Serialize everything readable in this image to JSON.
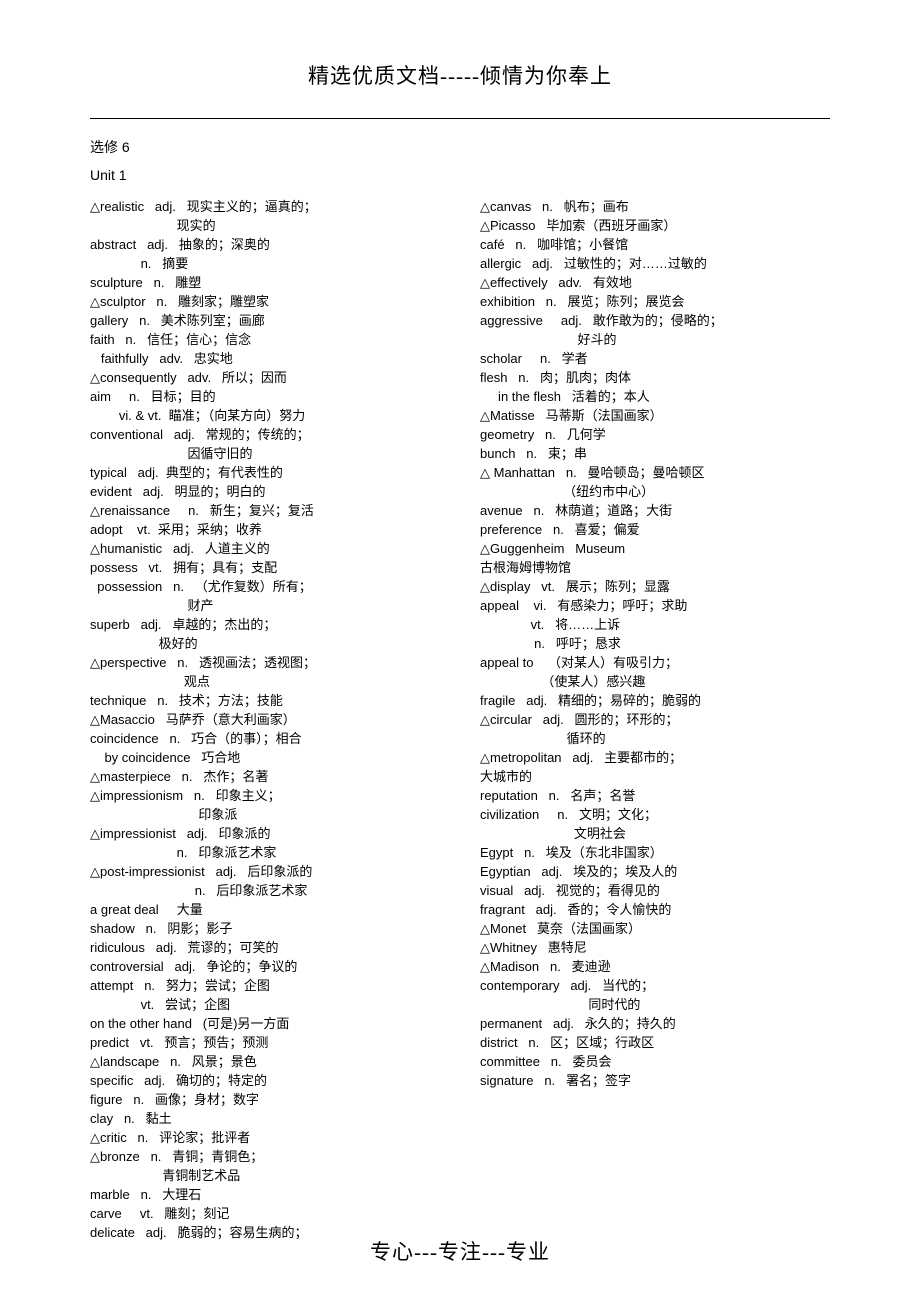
{
  "header": "精选优质文档-----倾情为你奉上",
  "footer": "专心---专注---专业",
  "section": "选修 6",
  "unit": "Unit 1",
  "left": [
    "△realistic   adj.   现实主义的；逼真的；",
    "                        现实的",
    "abstract   adj.   抽象的；深奥的",
    "              n.   摘要",
    "sculpture   n.   雕塑",
    "△sculptor   n.   雕刻家；雕塑家",
    "gallery   n.   美术陈列室；画廊",
    "faith   n.   信任；信心；信念",
    "   faithfully   adv.   忠实地",
    "△consequently   adv.   所以；因而",
    "aim     n.   目标；目的",
    "        vi. & vt.  瞄准；（向某方向）努力",
    "conventional   adj.   常规的；传统的；",
    "                           因循守旧的",
    "typical   adj.  典型的；有代表性的",
    "evident   adj.   明显的；明白的",
    "△renaissance     n.   新生；复兴；复活",
    "adopt    vt.  采用；采纳；收养",
    "△humanistic   adj.   人道主义的",
    "possess   vt.   拥有；具有；支配",
    "  possession   n.   （尤作复数）所有；",
    "                           财产",
    "superb   adj.   卓越的；杰出的；",
    "                   极好的",
    "△perspective   n.   透视画法；透视图；",
    "                          观点",
    "technique   n.   技术；方法；技能",
    "△Masaccio   马萨乔（意大利画家）",
    "coincidence   n.   巧合（的事）；相合",
    "    by coincidence   巧合地",
    "△masterpiece   n.   杰作；名著",
    "△impressionism   n.   印象主义；",
    "                              印象派",
    "△impressionist   adj.   印象派的",
    "                        n.   印象派艺术家",
    "△post-impressionist   adj.   后印象派的",
    "                             n.   后印象派艺术家",
    "a great deal     大量",
    "shadow   n.   阴影；影子",
    "ridiculous   adj.   荒谬的；可笑的",
    "controversial   adj.   争论的；争议的",
    "attempt   n.   努力；尝试；企图",
    "              vt.   尝试；企图",
    "on the other hand   (可是)另一方面",
    "predict   vt.   预言；预告；预测",
    "△landscape   n.   风景；景色",
    "specific   adj.   确切的；特定的",
    "figure   n.   画像；身材；数字",
    "clay   n.   黏土",
    "△critic   n.   评论家；批评者",
    "△bronze   n.   青铜；青铜色；",
    "                    青铜制艺术品",
    "marble   n.   大理石",
    "carve     vt.   雕刻；刻记",
    "delicate   adj.   脆弱的；容易生病的；"
  ],
  "right": [
    "△canvas   n.   帆布；画布",
    "△Picasso   毕加索（西班牙画家）",
    "café   n.   咖啡馆；小餐馆",
    "allergic   adj.   过敏性的；对……过敏的",
    "△effectively   adv.   有效地",
    "exhibition   n.   展览；陈列；展览会",
    "aggressive     adj.   敢作敢为的；侵略的；",
    "                           好斗的",
    "scholar     n.   学者",
    "flesh   n.   肉；肌肉；肉体",
    "     in the flesh   活着的；本人",
    "△Matisse   马蒂斯（法国画家）",
    "geometry   n.   几何学",
    "bunch   n.   束；串",
    "△ Manhattan   n.   曼哈顿岛；曼哈顿区",
    "                       （纽约市中心）",
    "avenue   n.   林荫道；道路；大街",
    "preference   n.   喜爱；偏爱",
    "△Guggenheim   Museum",
    "古根海姆博物馆",
    "△display   vt.   展示；陈列；显露",
    "appeal    vi.   有感染力；呼吁；求助",
    "              vt.   将……上诉",
    "               n.   呼吁；恳求",
    "appeal to    （对某人）有吸引力；",
    "                 （使某人）感兴趣",
    "fragile   adj.   精细的；易碎的；脆弱的",
    "△circular   adj.   圆形的；环形的；",
    "                        循环的",
    "△metropolitan   adj.   主要都市的；",
    "大城市的",
    "reputation   n.   名声；名誉",
    "civilization     n.   文明；文化；",
    "                          文明社会",
    "Egypt   n.   埃及（东北非国家）",
    "Egyptian   adj.   埃及的；埃及人的",
    "visual   adj.   视觉的；看得见的",
    "fragrant   adj.   香的；令人愉快的",
    "△Monet   莫奈（法国画家）",
    "△Whitney   惠特尼",
    "△Madison   n.   麦迪逊",
    "contemporary   adj.   当代的；",
    "                              同时代的",
    "permanent   adj.   永久的；持久的",
    "district   n.   区；区域；行政区",
    "committee   n.   委员会",
    "signature   n.   署名；签字"
  ]
}
